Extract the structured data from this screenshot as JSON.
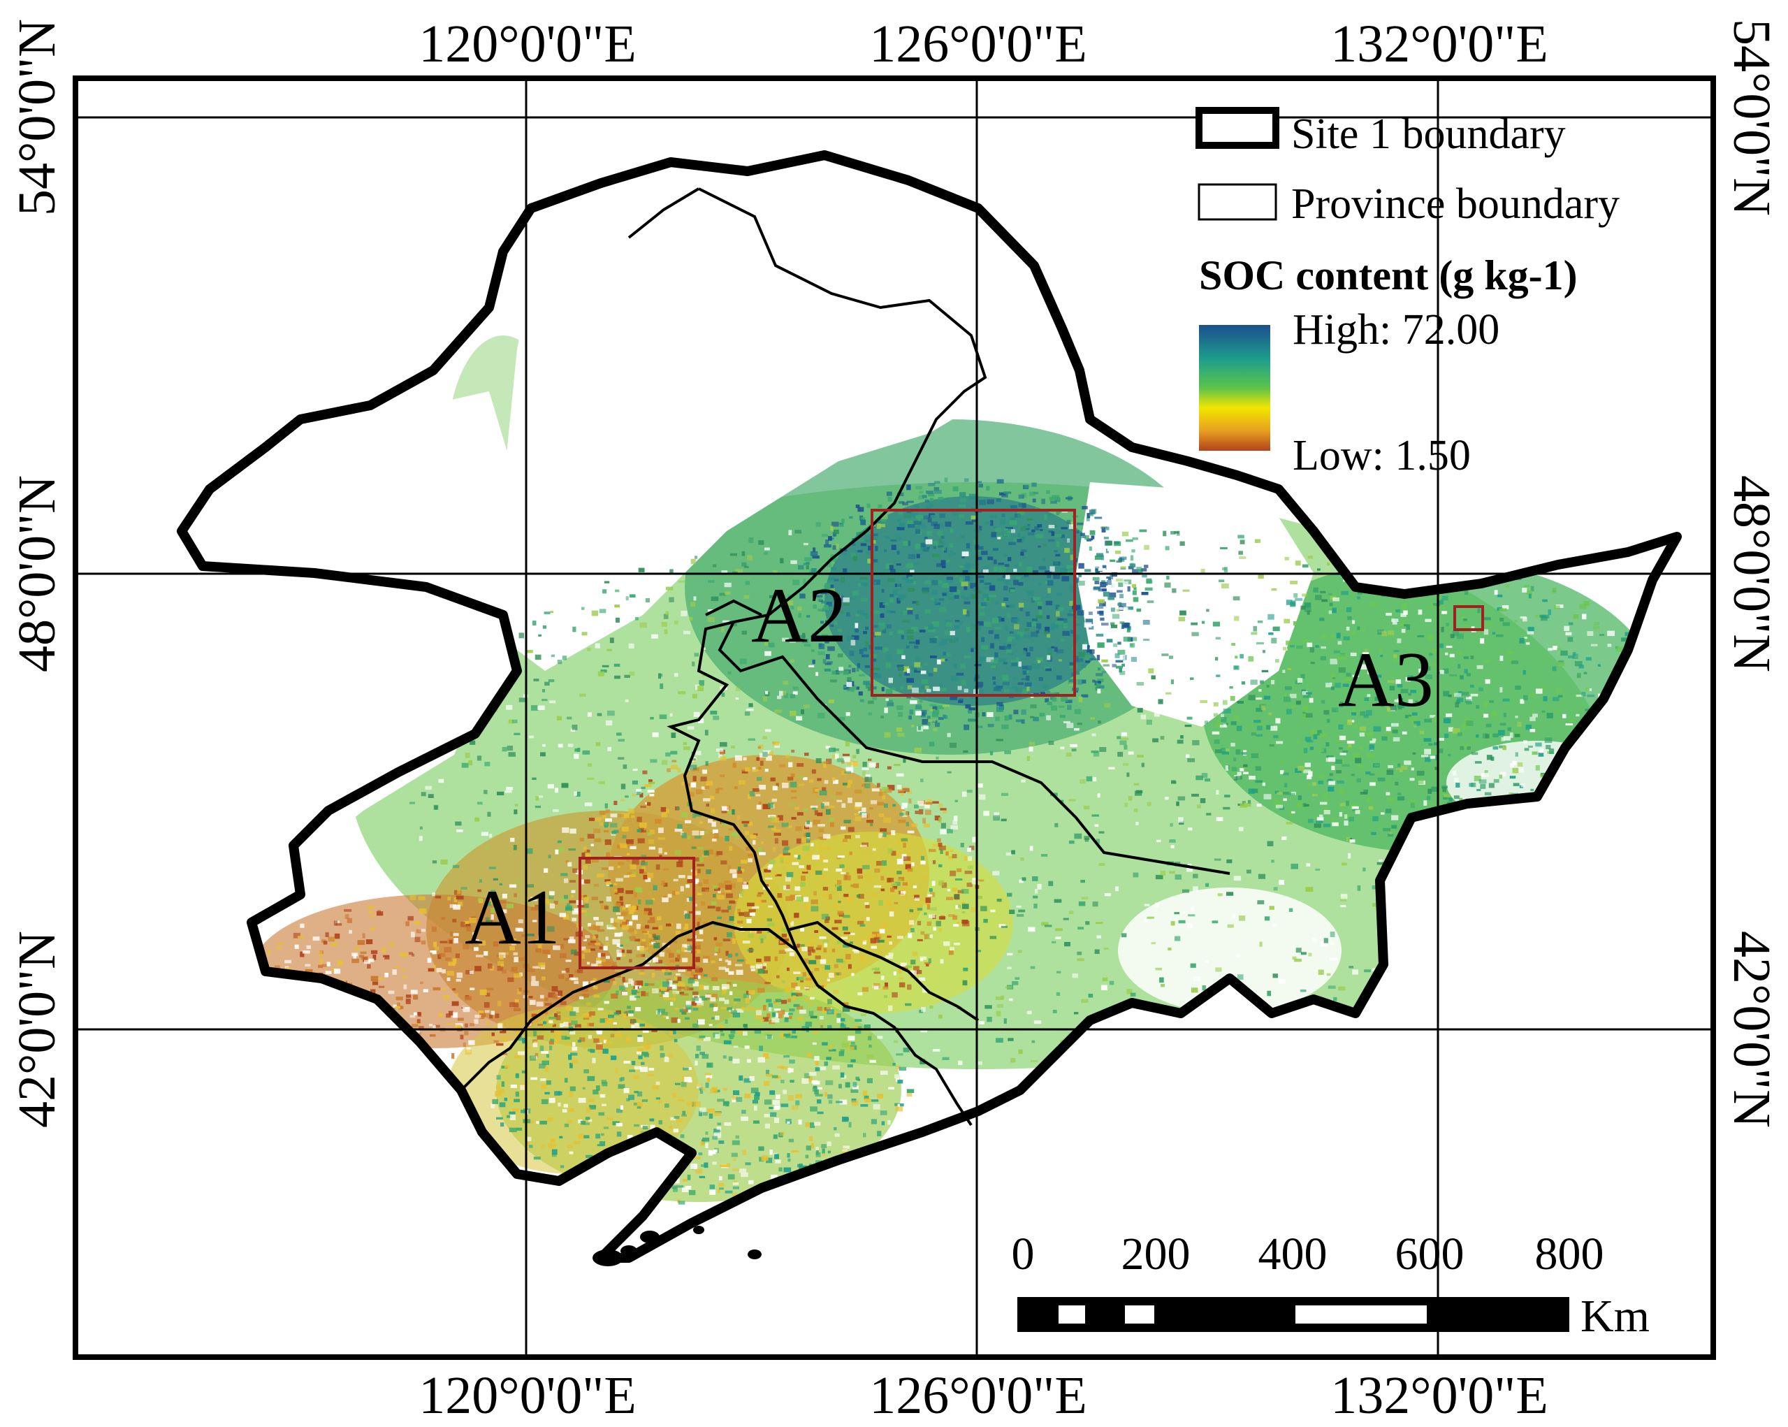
{
  "map": {
    "graticule": {
      "top_lon_labels": [
        "120°0'0\"E",
        "126°0'0\"E",
        "132°0'0\"E"
      ],
      "bottom_lon_labels": [
        "120°0'0\"E",
        "126°0'0\"E",
        "132°0'0\"E"
      ],
      "left_lat_labels": [
        "54°0'0\"N",
        "48°0'0\"N",
        "42°0'0\"N"
      ],
      "right_lat_labels": [
        "54°0'0\"N",
        "48°0'0\"N",
        "42°0'0\"N"
      ]
    },
    "legend": {
      "site_boundary_label": "Site 1 boundary",
      "province_boundary_label": "Province boundary",
      "soc_title": "SOC content (g kg-1)",
      "high_label": "High: 72.00",
      "low_label": "Low: 1.50",
      "ramp_colors": [
        "#1a4f8f",
        "#1fa08a",
        "#5cc34a",
        "#f2e600",
        "#e8a020",
        "#b0441c"
      ]
    },
    "areas": [
      "A1",
      "A2",
      "A3"
    ],
    "area_box_color": "#a32020",
    "scale_bar": {
      "ticks": [
        "0",
        "200",
        "400",
        "600",
        "800"
      ],
      "unit": "Km"
    }
  }
}
